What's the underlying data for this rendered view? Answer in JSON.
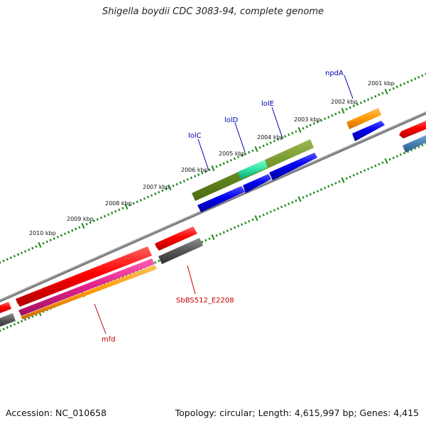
{
  "title": "Shigella boydii CDC 3083-94, complete genome",
  "footer": {
    "accession": "Accession: NC_010658",
    "summary": "Topology: circular; Length: 4,615,997 bp; Genes: 4,415"
  },
  "tick_labels": [
    "2001 kbp",
    "2002 kbp",
    "2003 kbp",
    "2004 kbp",
    "2005 kbp",
    "2006 kbp",
    "2007 kbp",
    "2008 kbp",
    "2009 kbp",
    "2010 kbp"
  ],
  "gene_labels": {
    "npdA": "npdA",
    "lolE": "lolE",
    "lolD": "lolD",
    "lolC": "lolC",
    "SbBS512_E2208": "SbBS512_E2208",
    "mfd": "mfd"
  },
  "colors": {
    "backbone": "#808080",
    "tick": "#1a8a1a",
    "cds_forward": "#e80000",
    "cds_reverse": "#0000e0",
    "olive": "#6b8e23",
    "aqua": "#30e0a0",
    "orange": "#ff9900",
    "magenta": "#e0208a",
    "gray_gene": "#555555",
    "steel": "#4682b4",
    "label_blue": "#0000b0",
    "label_red": "#c00000"
  }
}
